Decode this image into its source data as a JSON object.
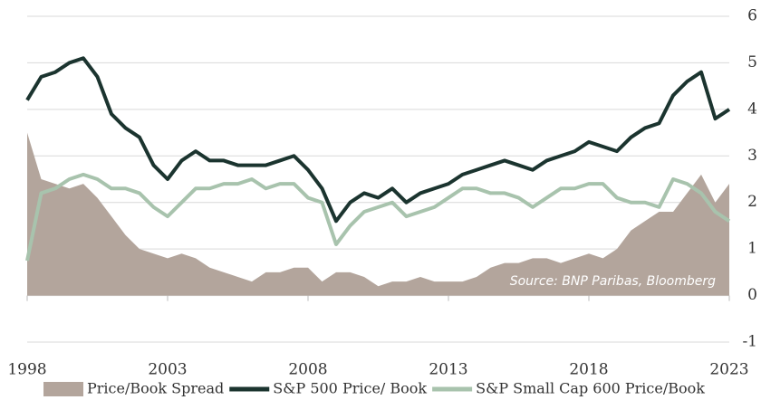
{
  "chart_data": {
    "type": "line",
    "x": [
      1998,
      1998.5,
      1999,
      1999.5,
      2000,
      2000.5,
      2001,
      2001.5,
      2002,
      2002.5,
      2003,
      2003.5,
      2004,
      2004.5,
      2005,
      2005.5,
      2006,
      2006.5,
      2007,
      2007.5,
      2008,
      2008.5,
      2009,
      2009.5,
      2010,
      2010.5,
      2011,
      2011.5,
      2012,
      2012.5,
      2013,
      2013.5,
      2014,
      2014.5,
      2015,
      2015.5,
      2016,
      2016.5,
      2017,
      2017.5,
      2018,
      2018.5,
      2019,
      2019.5,
      2020,
      2020.5,
      2021,
      2021.5,
      2022,
      2022.5,
      2023
    ],
    "xlim": [
      1998,
      2023
    ],
    "xticks": [
      1998,
      2003,
      2008,
      2013,
      2018,
      2023
    ],
    "ylim": [
      -1,
      6
    ],
    "yticks": [
      -1,
      0,
      1,
      2,
      3,
      4,
      5,
      6
    ],
    "grid": true,
    "annotation": "Source: BNP Paribas, Bloomberg",
    "series": [
      {
        "name": "Price/Book Spread",
        "kind": "area",
        "color": "#b3a59c",
        "values": [
          3.5,
          2.5,
          2.4,
          2.3,
          2.4,
          2.1,
          1.7,
          1.3,
          1.0,
          0.9,
          0.8,
          0.9,
          0.8,
          0.6,
          0.5,
          0.4,
          0.3,
          0.5,
          0.5,
          0.6,
          0.6,
          0.3,
          0.5,
          0.5,
          0.4,
          0.2,
          0.3,
          0.3,
          0.4,
          0.3,
          0.3,
          0.3,
          0.4,
          0.6,
          0.7,
          0.7,
          0.8,
          0.8,
          0.7,
          0.8,
          0.9,
          0.8,
          1.0,
          1.4,
          1.6,
          1.8,
          1.8,
          2.2,
          2.6,
          2.0,
          2.4
        ]
      },
      {
        "name": "S&P 500 Price/ Book",
        "kind": "line",
        "color": "#1b342f",
        "values": [
          4.2,
          4.7,
          4.8,
          5.0,
          5.1,
          4.7,
          3.9,
          3.6,
          3.4,
          2.8,
          2.5,
          2.9,
          3.1,
          2.9,
          2.9,
          2.8,
          2.8,
          2.8,
          2.9,
          3.0,
          2.7,
          2.3,
          1.6,
          2.0,
          2.2,
          2.1,
          2.3,
          2.0,
          2.2,
          2.3,
          2.4,
          2.6,
          2.7,
          2.8,
          2.9,
          2.8,
          2.7,
          2.9,
          3.0,
          3.1,
          3.3,
          3.2,
          3.1,
          3.4,
          3.6,
          3.7,
          4.3,
          4.6,
          4.8,
          3.8,
          4.0
        ]
      },
      {
        "name": "S&P Small Cap 600 Price/Book",
        "kind": "line",
        "color": "#a8c3ad",
        "values": [
          0.75,
          2.2,
          2.3,
          2.5,
          2.6,
          2.5,
          2.3,
          2.3,
          2.2,
          1.9,
          1.7,
          2.0,
          2.3,
          2.3,
          2.4,
          2.4,
          2.5,
          2.3,
          2.4,
          2.4,
          2.1,
          2.0,
          1.1,
          1.5,
          1.8,
          1.9,
          2.0,
          1.7,
          1.8,
          1.9,
          2.1,
          2.3,
          2.3,
          2.2,
          2.2,
          2.1,
          1.9,
          2.1,
          2.3,
          2.3,
          2.4,
          2.4,
          2.1,
          2.0,
          2.0,
          1.9,
          2.5,
          2.4,
          2.2,
          1.8,
          1.6
        ]
      }
    ]
  }
}
